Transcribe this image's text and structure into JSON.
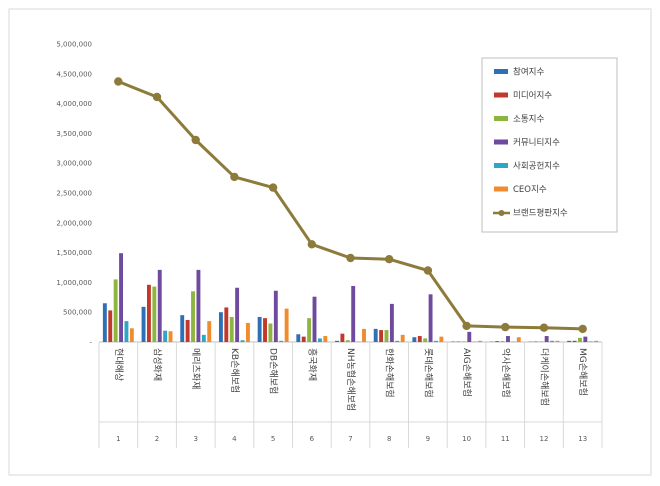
{
  "chart_data": {
    "type": "bar",
    "categories": [
      "현대해상",
      "삼성화재",
      "메리츠화재",
      "KB손해보험",
      "DB손해보험",
      "흥국화재",
      "NH농협손해보험",
      "한화손해보험",
      "롯데손해보험",
      "AIG손해보험",
      "악사손해보험",
      "더케이손해보험",
      "MG손해보험"
    ],
    "category_numbers": [
      "1",
      "2",
      "3",
      "4",
      "5",
      "6",
      "7",
      "8",
      "9",
      "10",
      "11",
      "12",
      "13"
    ],
    "series": [
      {
        "name": "참여지수",
        "color": "#2e6fb5",
        "values": [
          650000,
          590000,
          450000,
          500000,
          420000,
          130000,
          20000,
          220000,
          80000,
          8000,
          5000,
          5000,
          20000
        ]
      },
      {
        "name": "미디어지수",
        "color": "#c0392b",
        "values": [
          530000,
          960000,
          370000,
          580000,
          400000,
          90000,
          140000,
          200000,
          100000,
          8000,
          15000,
          8000,
          20000
        ]
      },
      {
        "name": "소통지수",
        "color": "#8db53f",
        "values": [
          1050000,
          930000,
          850000,
          420000,
          310000,
          400000,
          30000,
          200000,
          60000,
          10000,
          15000,
          10000,
          70000
        ]
      },
      {
        "name": "커뮤니티지수",
        "color": "#6f4a9e",
        "values": [
          1490000,
          1210000,
          1210000,
          910000,
          860000,
          760000,
          940000,
          640000,
          800000,
          170000,
          100000,
          100000,
          90000
        ]
      },
      {
        "name": "사회공헌지수",
        "color": "#2ea6c5",
        "values": [
          350000,
          190000,
          120000,
          30000,
          20000,
          60000,
          5000,
          20000,
          20000,
          5000,
          5000,
          20000,
          10000
        ]
      },
      {
        "name": "CEO지수",
        "color": "#f08c2e",
        "values": [
          230000,
          180000,
          350000,
          320000,
          560000,
          100000,
          220000,
          120000,
          90000,
          20000,
          80000,
          20000,
          20000
        ]
      }
    ],
    "line_series": {
      "name": "브랜드평판지수",
      "color": "#8c7b3a",
      "values": [
        4370000,
        4110000,
        3390000,
        2770000,
        2590000,
        1640000,
        1410000,
        1390000,
        1200000,
        270000,
        250000,
        240000,
        220000
      ]
    },
    "y_ticks": [
      "-",
      "500,000",
      "1,000,000",
      "1,500,000",
      "2,000,000",
      "2,500,000",
      "3,000,000",
      "3,500,000",
      "4,000,000",
      "4,500,000",
      "5,000,000"
    ],
    "ylim": [
      0,
      5000000
    ],
    "legend_position": "top-right",
    "grid": false
  }
}
